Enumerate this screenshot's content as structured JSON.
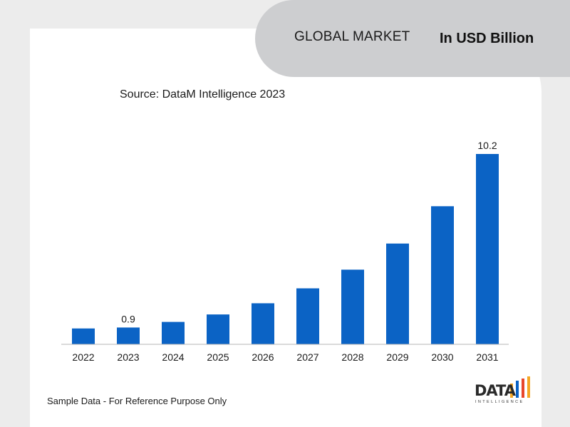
{
  "header": {
    "title": "GLOBAL MARKET",
    "unit": "In USD Billion"
  },
  "source": "Source: DataM Intelligence 2023",
  "footer_note": "Sample Data - For Reference Purpose Only",
  "logo": {
    "word": "DATA",
    "sub": "INTELLIGENCE"
  },
  "colors": {
    "bar": "#0b63c5",
    "logo_bars": [
      "#f5a623",
      "#0b63c5",
      "#e8472b",
      "#f5a623"
    ]
  },
  "chart_data": {
    "type": "bar",
    "categories": [
      "2022",
      "2023",
      "2024",
      "2025",
      "2026",
      "2027",
      "2028",
      "2029",
      "2030",
      "2031"
    ],
    "values": [
      0.85,
      0.9,
      1.2,
      1.6,
      2.2,
      3.0,
      4.0,
      5.4,
      7.4,
      10.2
    ],
    "data_labels": {
      "1": "0.9",
      "9": "10.2"
    },
    "ylim": [
      0,
      10.2
    ],
    "grid": false
  }
}
